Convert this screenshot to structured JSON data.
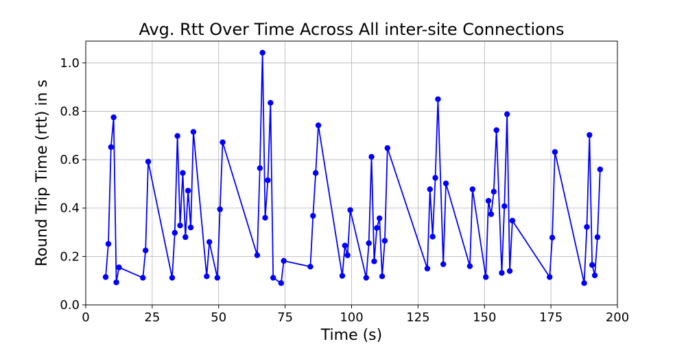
{
  "chart_data": {
    "type": "line",
    "title": "Avg. Rtt Over Time Across All inter-site Connections",
    "xlabel": "Time (s)",
    "ylabel": "Round Trip Time (rtt) in s",
    "xlim": [
      0,
      200
    ],
    "ylim": [
      0,
      1.09
    ],
    "xticks": [
      0,
      25,
      50,
      75,
      100,
      125,
      150,
      175,
      200
    ],
    "yticks": [
      0.0,
      0.2,
      0.4,
      0.6,
      0.8,
      1.0
    ],
    "xtick_labels": [
      "0",
      "25",
      "50",
      "75",
      "100",
      "125",
      "150",
      "175",
      "200"
    ],
    "ytick_labels": [
      "0.0",
      "0.2",
      "0.4",
      "0.6",
      "0.8",
      "1.0"
    ],
    "grid": true,
    "color": "#0000ff",
    "marker": "circle",
    "x": [
      7.5,
      8.5,
      9.5,
      10.5,
      11.5,
      12.5,
      21.5,
      22.5,
      23.5,
      32.5,
      33.5,
      34.5,
      35.5,
      36.5,
      37.5,
      38.5,
      39.5,
      40.5,
      45.5,
      46.5,
      49.5,
      50.5,
      51.5,
      64.5,
      65.5,
      66.5,
      67.5,
      68.5,
      69.5,
      70.5,
      73.5,
      74.5,
      84.5,
      85.5,
      86.5,
      87.5,
      96.5,
      97.5,
      98.5,
      99.5,
      105.5,
      106.5,
      107.5,
      108.5,
      109.5,
      110.5,
      111.5,
      112.5,
      113.5,
      128.5,
      129.5,
      130.5,
      131.5,
      132.5,
      134.5,
      135.5,
      144.5,
      145.5,
      150.5,
      151.5,
      152.5,
      153.5,
      154.5,
      156.5,
      157.5,
      158.5,
      159.5,
      160.5,
      174.5,
      175.5,
      176.5,
      187.5,
      188.5,
      189.5,
      190.5,
      191.5,
      192.5,
      193.5
    ],
    "y": [
      0.115,
      0.252,
      0.652,
      0.775,
      0.093,
      0.155,
      0.112,
      0.225,
      0.592,
      0.112,
      0.298,
      0.698,
      0.328,
      0.545,
      0.28,
      0.472,
      0.32,
      0.715,
      0.118,
      0.26,
      0.112,
      0.395,
      0.672,
      0.205,
      0.565,
      1.042,
      0.36,
      0.515,
      0.835,
      0.112,
      0.09,
      0.182,
      0.158,
      0.368,
      0.545,
      0.742,
      0.12,
      0.245,
      0.205,
      0.392,
      0.112,
      0.255,
      0.612,
      0.18,
      0.318,
      0.358,
      0.118,
      0.265,
      0.648,
      0.15,
      0.478,
      0.282,
      0.525,
      0.85,
      0.168,
      0.502,
      0.16,
      0.478,
      0.115,
      0.43,
      0.375,
      0.468,
      0.722,
      0.132,
      0.408,
      0.788,
      0.14,
      0.348,
      0.115,
      0.278,
      0.632,
      0.09,
      0.322,
      0.702,
      0.165,
      0.122,
      0.28,
      0.56
    ]
  }
}
